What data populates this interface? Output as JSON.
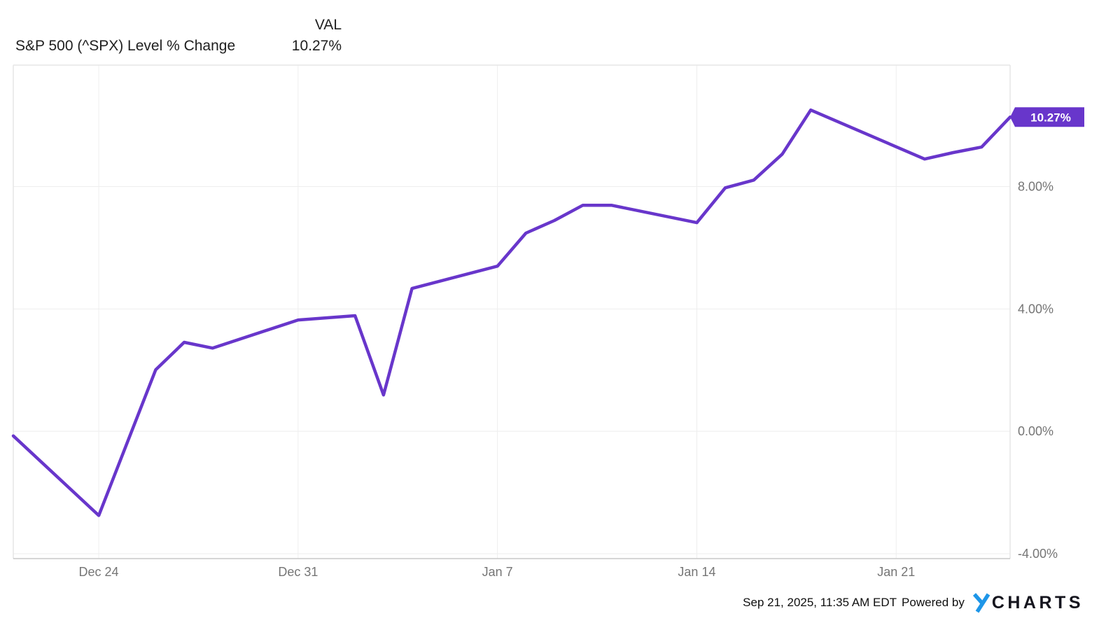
{
  "header": {
    "title": "S&P 500 (^SPX) Level % Change",
    "val_label": "VAL",
    "val_value": "10.27%"
  },
  "chart_data": {
    "type": "line",
    "title": "S&P 500 (^SPX) Level % Change",
    "xlabel": "",
    "ylabel": "",
    "xlim": [
      0,
      35
    ],
    "ylim": [
      -4.16,
      11.97
    ],
    "grid": true,
    "legend_position": "none",
    "end_label": "10.27%",
    "x_ticks": [
      {
        "day": 3,
        "label": "Dec 24"
      },
      {
        "day": 10,
        "label": "Dec 31"
      },
      {
        "day": 17,
        "label": "Jan 7"
      },
      {
        "day": 24,
        "label": "Jan 14"
      },
      {
        "day": 31,
        "label": "Jan 21"
      }
    ],
    "y_ticks": [
      {
        "value": 8,
        "label": "8.00%"
      },
      {
        "value": 4,
        "label": "4.00%"
      },
      {
        "value": 0,
        "label": "0.00%"
      },
      {
        "value": -4,
        "label": "-4.00%"
      }
    ],
    "series": [
      {
        "name": "S&P 500 (^SPX) Level % Change",
        "color": "#6836cb",
        "points": [
          {
            "day": 0,
            "value": -0.15
          },
          {
            "day": 3,
            "value": -2.75
          },
          {
            "day": 5,
            "value": 2.01
          },
          {
            "day": 6,
            "value": 2.91
          },
          {
            "day": 7,
            "value": 2.72
          },
          {
            "day": 10,
            "value": 3.64
          },
          {
            "day": 12,
            "value": 3.78
          },
          {
            "day": 13,
            "value": 1.19
          },
          {
            "day": 14,
            "value": 4.67
          },
          {
            "day": 17,
            "value": 5.4
          },
          {
            "day": 18,
            "value": 6.48
          },
          {
            "day": 19,
            "value": 6.89
          },
          {
            "day": 20,
            "value": 7.39
          },
          {
            "day": 21,
            "value": 7.39
          },
          {
            "day": 24,
            "value": 6.82
          },
          {
            "day": 25,
            "value": 7.96
          },
          {
            "day": 26,
            "value": 8.21
          },
          {
            "day": 27,
            "value": 9.06
          },
          {
            "day": 28,
            "value": 10.5
          },
          {
            "day": 32,
            "value": 8.9
          },
          {
            "day": 33,
            "value": 9.11
          },
          {
            "day": 34,
            "value": 9.29
          },
          {
            "day": 35,
            "value": 10.27
          }
        ]
      }
    ],
    "colors": {
      "grid": "#eeeeee",
      "border": "#e6e6e6",
      "axis_bottom": "#c8c8c8",
      "tick_text": "#757575",
      "line": "#6836cb",
      "badge_bg": "#6836cb",
      "badge_text": "#ffffff"
    }
  },
  "footer": {
    "timestamp": "Sep 21, 2025, 11:35 AM EDT",
    "powered_by": "Powered by",
    "logo": {
      "y": "Y",
      "charts": "CHARTS",
      "y_color": "#1e96e8",
      "charts_color": "#15151e"
    }
  }
}
